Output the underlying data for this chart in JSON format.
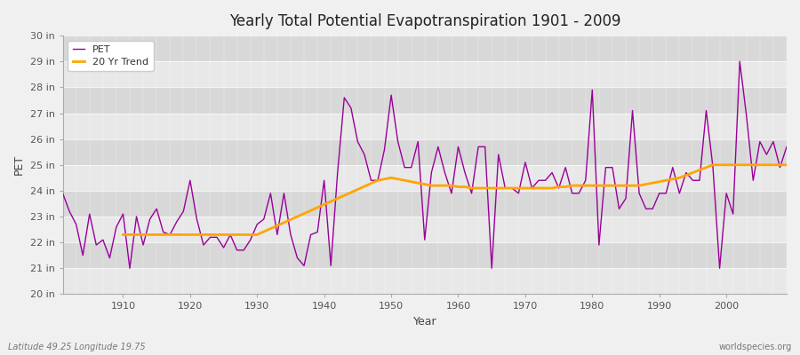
{
  "title": "Yearly Total Potential Evapotranspiration 1901 - 2009",
  "xlabel": "Year",
  "ylabel": "PET",
  "subtitle_left": "Latitude 49.25 Longitude 19.75",
  "subtitle_right": "worldspecies.org",
  "background_color": "#f0f0f0",
  "plot_bg_color": "#e8e8e8",
  "band_color_dark": "#d8d8d8",
  "band_color_light": "#e8e8e8",
  "ylim": [
    20,
    30
  ],
  "yticks": [
    20,
    21,
    22,
    23,
    24,
    25,
    26,
    27,
    28,
    29,
    30
  ],
  "ytick_labels": [
    "20 in",
    "21 in",
    "22 in",
    "23 in",
    "24 in",
    "25 in",
    "26 in",
    "27 in",
    "28 in",
    "29 in",
    "30 in"
  ],
  "xlim_start": 1901,
  "xlim_end": 2009,
  "xticks": [
    1910,
    1920,
    1930,
    1940,
    1950,
    1960,
    1970,
    1980,
    1990,
    2000
  ],
  "pet_color": "#990099",
  "trend_color": "#ffa500",
  "years": [
    1901,
    1902,
    1903,
    1904,
    1905,
    1906,
    1907,
    1908,
    1909,
    1910,
    1911,
    1912,
    1913,
    1914,
    1915,
    1916,
    1917,
    1918,
    1919,
    1920,
    1921,
    1922,
    1923,
    1924,
    1925,
    1926,
    1927,
    1928,
    1929,
    1930,
    1931,
    1932,
    1933,
    1934,
    1935,
    1936,
    1937,
    1938,
    1939,
    1940,
    1941,
    1942,
    1943,
    1944,
    1945,
    1946,
    1947,
    1948,
    1949,
    1950,
    1951,
    1952,
    1953,
    1954,
    1955,
    1956,
    1957,
    1958,
    1959,
    1960,
    1961,
    1962,
    1963,
    1964,
    1965,
    1966,
    1967,
    1968,
    1969,
    1970,
    1971,
    1972,
    1973,
    1974,
    1975,
    1976,
    1977,
    1978,
    1979,
    1980,
    1981,
    1982,
    1983,
    1984,
    1985,
    1986,
    1987,
    1988,
    1989,
    1990,
    1991,
    1992,
    1993,
    1994,
    1995,
    1996,
    1997,
    1998,
    1999,
    2000,
    2001,
    2002,
    2003,
    2004,
    2005,
    2006,
    2007,
    2008,
    2009
  ],
  "pet_values": [
    23.9,
    23.2,
    22.7,
    21.5,
    23.1,
    21.9,
    22.1,
    21.4,
    22.6,
    23.1,
    21.0,
    23.0,
    21.9,
    22.9,
    23.3,
    22.4,
    22.3,
    22.8,
    23.2,
    24.4,
    22.9,
    21.9,
    22.2,
    22.2,
    21.8,
    22.3,
    21.7,
    21.7,
    22.1,
    22.7,
    22.9,
    23.9,
    22.3,
    23.9,
    22.3,
    21.4,
    21.1,
    22.3,
    22.4,
    24.4,
    21.1,
    24.7,
    27.6,
    27.2,
    25.9,
    25.4,
    24.4,
    24.4,
    25.6,
    27.7,
    25.9,
    24.9,
    24.9,
    25.9,
    22.1,
    24.7,
    25.7,
    24.7,
    23.9,
    25.7,
    24.7,
    23.9,
    25.7,
    25.7,
    21.0,
    25.4,
    24.1,
    24.1,
    23.9,
    25.1,
    24.1,
    24.4,
    24.4,
    24.7,
    24.1,
    24.9,
    23.9,
    23.9,
    24.4,
    27.9,
    21.9,
    24.9,
    24.9,
    23.3,
    23.7,
    27.1,
    23.9,
    23.3,
    23.3,
    23.9,
    23.9,
    24.9,
    23.9,
    24.7,
    24.4,
    24.4,
    27.1,
    24.9,
    21.0,
    23.9,
    23.1,
    29.0,
    26.9,
    24.4,
    25.9,
    25.4,
    25.9,
    24.9,
    25.7
  ],
  "trend_years": [
    1910,
    1911,
    1912,
    1913,
    1914,
    1915,
    1916,
    1917,
    1918,
    1919,
    1920,
    1921,
    1922,
    1923,
    1924,
    1925,
    1926,
    1927,
    1928,
    1929,
    1930,
    1948,
    1949,
    1950,
    1951,
    1952,
    1953,
    1954,
    1955,
    1956,
    1957,
    1958,
    1959,
    1960,
    1961,
    1962,
    1963,
    1964,
    1965,
    1966,
    1967,
    1968,
    1969,
    1970,
    1971,
    1972,
    1973,
    1974,
    1975,
    1976,
    1977,
    1978,
    1979,
    1980,
    1981,
    1982,
    1983,
    1984,
    1985,
    1986,
    1987,
    1988,
    1989,
    1990,
    1991,
    1992,
    1993,
    1994,
    1995,
    1996,
    1997,
    1998,
    1999,
    2000,
    2001,
    2002,
    2003,
    2004,
    2005,
    2006,
    2007,
    2008,
    2009
  ],
  "trend_values": [
    22.3,
    22.3,
    22.3,
    22.3,
    22.3,
    22.3,
    22.3,
    22.3,
    22.3,
    22.3,
    22.3,
    22.3,
    22.3,
    22.3,
    22.3,
    22.3,
    22.3,
    22.3,
    22.3,
    22.3,
    22.3,
    24.4,
    24.45,
    24.5,
    24.45,
    24.4,
    24.35,
    24.3,
    24.25,
    24.2,
    24.2,
    24.2,
    24.2,
    24.15,
    24.15,
    24.1,
    24.1,
    24.1,
    24.1,
    24.1,
    24.1,
    24.1,
    24.1,
    24.1,
    24.1,
    24.1,
    24.1,
    24.1,
    24.15,
    24.15,
    24.2,
    24.2,
    24.2,
    24.2,
    24.2,
    24.2,
    24.2,
    24.2,
    24.2,
    24.2,
    24.2,
    24.25,
    24.3,
    24.35,
    24.4,
    24.45,
    24.5,
    24.6,
    24.7,
    24.8,
    24.9,
    25.0,
    25.0,
    25.0,
    25.0,
    25.0,
    25.0,
    25.0,
    25.0,
    25.0,
    25.0,
    25.0,
    25.0
  ]
}
